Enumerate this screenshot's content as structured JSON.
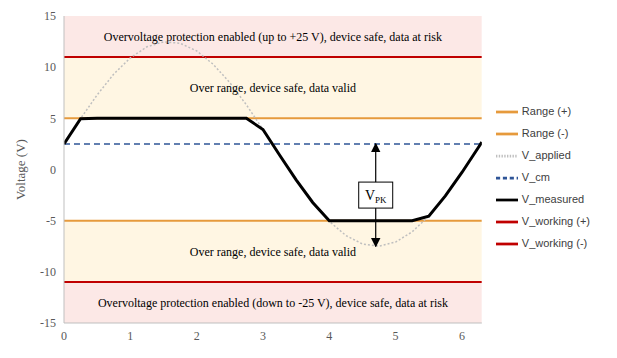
{
  "chart_data": {
    "type": "line",
    "y_label": "Voltage (V)",
    "xlim": [
      0,
      6.3
    ],
    "xticks": [
      0,
      1,
      2,
      3,
      4,
      5,
      6
    ],
    "ylim": [
      -15,
      15
    ],
    "yticks": [
      -15,
      -10,
      -5,
      0,
      5,
      10,
      15
    ],
    "grid": false,
    "legend": "right",
    "bands": [
      {
        "from": 11,
        "to": 15,
        "label": "Overvoltage protection enabled (up to +25 V), device safe, data at risk",
        "color": "#fce8e6"
      },
      {
        "from": 5,
        "to": 11,
        "label": "Over range, device safe, data valid",
        "color": "#fff6e3"
      },
      {
        "from": -11,
        "to": -5,
        "label": "Over range, device safe, data valid",
        "color": "#fff6e3"
      },
      {
        "from": -15,
        "to": -11,
        "label": "Overvoltage protection enabled (down to -25 V), device safe, data at risk",
        "color": "#fce8e6"
      }
    ],
    "annotations": [
      {
        "text": "V",
        "subscript": "PK",
        "x": 4.7,
        "y_from": 2.5,
        "y_to": -7.5
      }
    ],
    "series": [
      {
        "name": "V_working (+)",
        "color": "#c00000",
        "line_style": "solid",
        "x": [
          0,
          6.3
        ],
        "values": [
          11,
          11
        ]
      },
      {
        "name": "V_working (-)",
        "color": "#c00000",
        "line_style": "solid",
        "x": [
          0,
          6.3
        ],
        "values": [
          -11,
          -11
        ]
      },
      {
        "name": "Range (+)",
        "color": "#e69a3c",
        "line_style": "solid",
        "x": [
          0,
          6.3
        ],
        "values": [
          5,
          5
        ]
      },
      {
        "name": "Range (-)",
        "color": "#e69a3c",
        "line_style": "solid",
        "x": [
          0,
          6.3
        ],
        "values": [
          -5,
          -5
        ]
      },
      {
        "name": "V_cm",
        "color": "#2f5597",
        "line_style": "dashed",
        "x": [
          0,
          6.3
        ],
        "values": [
          2.5,
          2.5
        ]
      },
      {
        "name": "V_applied",
        "color": "#bfbfbf",
        "line_style": "dotted",
        "x": [
          0,
          0.25,
          0.5,
          0.75,
          1,
          1.25,
          1.5,
          1.75,
          2,
          2.25,
          2.5,
          2.75,
          3,
          3.25,
          3.5,
          3.75,
          4,
          4.25,
          4.5,
          4.75,
          5,
          5.25,
          5.5,
          5.75,
          6,
          6.25,
          6.3
        ],
        "values": [
          2.5,
          4.97,
          7.29,
          9.32,
          10.91,
          11.99,
          12.47,
          12.34,
          11.59,
          10.28,
          8.49,
          6.32,
          3.91,
          1.42,
          -1.01,
          -3.22,
          -5.07,
          -6.45,
          -7.28,
          -7.49,
          -7.09,
          -6.09,
          -4.56,
          -2.58,
          -0.29,
          2.17,
          2.67
        ]
      },
      {
        "name": "V_measured",
        "color": "#000000",
        "line_style": "solid",
        "x": [
          0,
          0.25,
          0.5,
          0.75,
          1,
          1.25,
          1.5,
          1.75,
          2,
          2.25,
          2.5,
          2.75,
          3,
          3.25,
          3.5,
          3.75,
          4,
          4.25,
          4.5,
          4.75,
          5,
          5.25,
          5.5,
          5.75,
          6,
          6.25,
          6.3
        ],
        "values": [
          2.5,
          4.97,
          5,
          5,
          5,
          5,
          5,
          5,
          5,
          5,
          5,
          5,
          3.91,
          1.42,
          -1.01,
          -3.22,
          -5,
          -5,
          -5,
          -5,
          -5,
          -5,
          -4.56,
          -2.58,
          -0.29,
          2.17,
          2.67
        ]
      }
    ]
  }
}
